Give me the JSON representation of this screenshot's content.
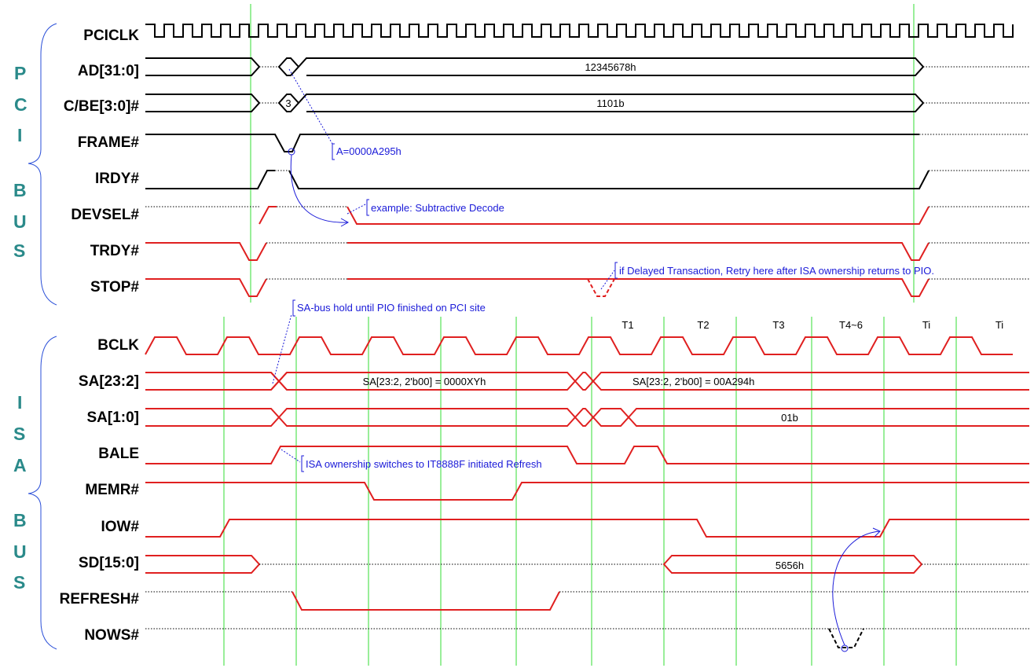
{
  "groups": {
    "pci": [
      "P",
      "C",
      "I",
      "B",
      "U",
      "S"
    ],
    "isa": [
      "I",
      "S",
      "A",
      "B",
      "U",
      "S"
    ]
  },
  "signals": {
    "pciclk": "PCICLK",
    "ad": "AD[31:0]",
    "cbe": "C/BE[3:0]#",
    "frame": "FRAME#",
    "irdy": "IRDY#",
    "devsel": "DEVSEL#",
    "trdy": "TRDY#",
    "stop": "STOP#",
    "bclk": "BCLK",
    "sa232": "SA[23:2]",
    "sa10": "SA[1:0]",
    "bale": "BALE",
    "memr": "MEMR#",
    "iow": "IOW#",
    "sd": "SD[15:0]",
    "refresh": "REFRESH#",
    "nows": "NOWS#"
  },
  "values": {
    "ad_data": "12345678h",
    "cbe_cmd": "3",
    "cbe_data": "1101b",
    "sa232_a": "SA[23:2, 2'b00] = 0000XYh",
    "sa232_b": "SA[23:2, 2'b00] = 00A294h",
    "sa10": "01b",
    "sd": "5656h"
  },
  "annotations": {
    "addr": "A=0000A295h",
    "subtractive": "example: Subtractive Decode",
    "delayed": "if Delayed Transaction, Retry here after ISA ownership returns to PIO.",
    "sa_hold": "SA-bus hold until PIO finished on PCI site",
    "isa_owner": "ISA ownership switches to IT8888F initiated Refresh"
  },
  "cycle_labels": [
    "T1",
    "T2",
    "T3",
    "T4~6",
    "Ti",
    "Ti"
  ],
  "colors": {
    "pci_wave": "#000000",
    "isa_wave": "#e02020",
    "annotation": "#1a1ad8",
    "clock_marker": "#33dd33",
    "group_label": "#2a8a8a"
  }
}
